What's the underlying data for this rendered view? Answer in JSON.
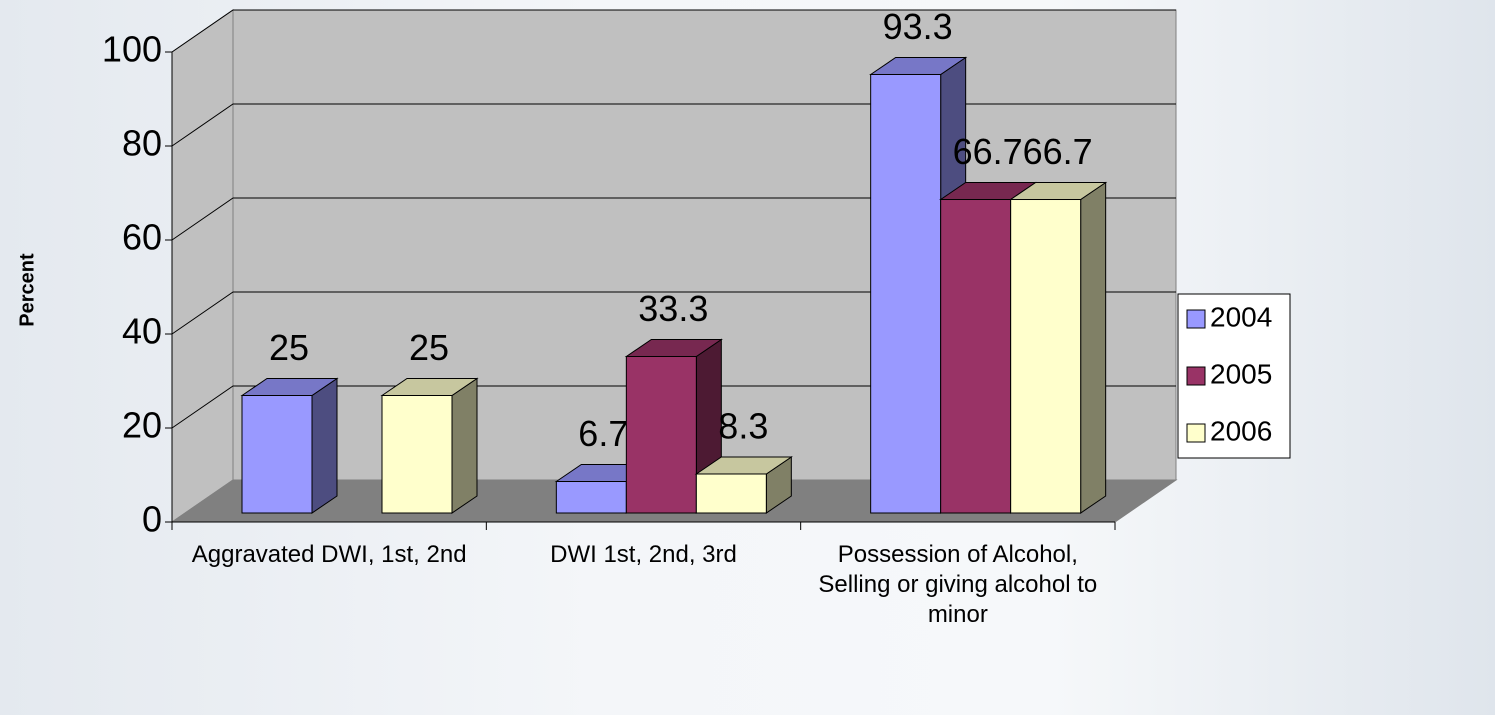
{
  "chart_data": {
    "type": "bar3d",
    "y_label": "Percent",
    "categories": [
      "Aggravated DWI, 1st, 2nd",
      "DWI 1st, 2nd, 3rd",
      "Possession of Alcohol, Selling or giving alcohol to minor"
    ],
    "series": [
      {
        "name": "2004",
        "color": "#9999ff",
        "values": [
          25,
          6.7,
          93.3
        ]
      },
      {
        "name": "2005",
        "color": "#993366",
        "values": [
          null,
          33.3,
          66.7
        ]
      },
      {
        "name": "2006",
        "color": "#ffffcc",
        "values": [
          25,
          8.3,
          66.7
        ]
      }
    ],
    "ylim": [
      0,
      100
    ],
    "yticks": [
      0,
      20,
      40,
      60,
      80,
      100
    ],
    "grid": true,
    "legend": "right"
  }
}
